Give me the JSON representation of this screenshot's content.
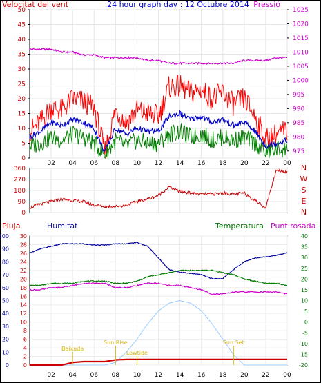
{
  "header": {
    "left_title": "Velocitat del vent",
    "center_title": "24 hour graph day : 12 Octubre 2014",
    "right_title": "Pressió"
  },
  "x_ticks": [
    "02",
    "04",
    "06",
    "08",
    "10",
    "12",
    "14",
    "16",
    "18",
    "20",
    "22",
    "00"
  ],
  "colors": {
    "wind_gust": "#ff0000",
    "wind_avg": "#0000cc",
    "wind_low": "#008000",
    "pressure": "#cc00cc",
    "direction": "#cc0000",
    "rain": "#cc0000",
    "humidity": "#000099",
    "temperature": "#007700",
    "dew_point": "#cc00cc",
    "sun": "#99ccff",
    "annotation": "#d4b800",
    "frame": "#000000"
  },
  "chart_data": [
    {
      "type": "line",
      "panel": "wind_pressure",
      "left_axis": {
        "label": "Velocitat del vent",
        "ticks": [
          0,
          5,
          10,
          15,
          20,
          25,
          30,
          35,
          40,
          45,
          50
        ],
        "range": [
          0,
          50
        ]
      },
      "right_axis": {
        "label": "Pressió",
        "ticks": [
          975,
          980,
          985,
          990,
          995,
          1000,
          1005,
          1010,
          1015,
          1020,
          1025
        ],
        "range": [
          972.5,
          1025
        ]
      },
      "x_hours": [
        0,
        1,
        2,
        3,
        4,
        5,
        6,
        7,
        8,
        9,
        10,
        11,
        12,
        13,
        14,
        15,
        16,
        17,
        18,
        19,
        20,
        21,
        22,
        23,
        24
      ],
      "series": [
        {
          "name": "Pressió",
          "axis": "right",
          "values": [
            1011,
            1011,
            1011,
            1010,
            1010,
            1009,
            1009,
            1008,
            1008,
            1008,
            1008,
            1007,
            1007,
            1006,
            1006,
            1006,
            1006,
            1006,
            1006,
            1006,
            1007,
            1007,
            1007,
            1008,
            1008
          ]
        },
        {
          "name": "gust",
          "axis": "left",
          "values": [
            9,
            12,
            17,
            16,
            20,
            19,
            17,
            2,
            16,
            12,
            16,
            15,
            14,
            24,
            24,
            22,
            23,
            20,
            22,
            18,
            20,
            14,
            6,
            8,
            9
          ]
        },
        {
          "name": "average",
          "axis": "left",
          "values": [
            7,
            9,
            12,
            11,
            13,
            12,
            10,
            2,
            10,
            8,
            10,
            9,
            9,
            14,
            15,
            13,
            14,
            12,
            13,
            11,
            12,
            9,
            4,
            5,
            6
          ]
        },
        {
          "name": "low",
          "axis": "left",
          "values": [
            4,
            5,
            7,
            6,
            8,
            7,
            5,
            1,
            6,
            4,
            6,
            5,
            5,
            8,
            9,
            7,
            8,
            6,
            7,
            6,
            7,
            5,
            2,
            3,
            3
          ]
        }
      ]
    },
    {
      "type": "line",
      "panel": "wind_direction",
      "left_axis": {
        "ticks": [
          0,
          90,
          180,
          270,
          360
        ],
        "range": [
          0,
          360
        ]
      },
      "right_axis": {
        "labels": [
          "N",
          "W",
          "S",
          "E",
          "N"
        ]
      },
      "x_hours": [
        0,
        1,
        2,
        3,
        4,
        5,
        6,
        7,
        8,
        9,
        10,
        11,
        12,
        13,
        14,
        15,
        16,
        17,
        18,
        19,
        20,
        21,
        22,
        23,
        24
      ],
      "series": [
        {
          "name": "direction",
          "values": [
            40,
            70,
            90,
            110,
            100,
            90,
            60,
            50,
            50,
            60,
            90,
            110,
            140,
            210,
            170,
            160,
            150,
            150,
            160,
            150,
            160,
            100,
            40,
            350,
            330
          ]
        }
      ]
    },
    {
      "type": "line",
      "panel": "rain_humidity_temperature",
      "labels": {
        "rain": "Pluja",
        "humidity": "Humitat",
        "temperature": "Temperatura",
        "dew_point": "Punt rosada"
      },
      "axes": {
        "humidity": {
          "ticks": [
            0,
            10,
            20,
            30,
            40,
            50,
            60,
            70,
            80,
            90,
            100
          ],
          "range": [
            0,
            100
          ]
        },
        "rain": {
          "ticks": [
            0,
            2,
            4,
            6,
            8,
            10,
            12,
            14,
            16,
            18,
            20,
            22,
            24,
            26,
            28,
            30
          ],
          "range": [
            0,
            30
          ]
        },
        "temperature": {
          "ticks": [
            -20,
            -15,
            -10,
            -5,
            0,
            5,
            10,
            15,
            20,
            25,
            30,
            35,
            40
          ],
          "range": [
            -20,
            40
          ]
        }
      },
      "x_hours": [
        0,
        1,
        2,
        3,
        4,
        5,
        6,
        7,
        8,
        9,
        10,
        11,
        12,
        13,
        14,
        15,
        16,
        17,
        18,
        19,
        20,
        21,
        22,
        23,
        24
      ],
      "series": [
        {
          "name": "Humitat",
          "axis": "humidity",
          "values": [
            87,
            90,
            92,
            94,
            94,
            94,
            93,
            93,
            94,
            94,
            95,
            92,
            83,
            74,
            72,
            71,
            70,
            67,
            67,
            74,
            80,
            83,
            84,
            85,
            87
          ]
        },
        {
          "name": "Temperatura",
          "axis": "temperature",
          "values": [
            17,
            17,
            18,
            18,
            18,
            19,
            19,
            19,
            18,
            18,
            19,
            21,
            22,
            23,
            24,
            24,
            24,
            24,
            23,
            22,
            20,
            19,
            18,
            18,
            17
          ]
        },
        {
          "name": "Punt rosada",
          "axis": "temperature",
          "values": [
            15,
            15,
            16,
            16,
            17,
            18,
            18,
            18,
            16,
            16,
            17,
            18,
            18,
            17,
            17,
            16,
            15,
            13,
            13,
            14,
            14,
            14,
            14,
            14,
            13
          ]
        },
        {
          "name": "Pluja",
          "axis": "rain",
          "values": [
            0,
            0,
            0,
            0,
            0.6,
            0.8,
            0.8,
            0.8,
            1.2,
            1.3,
            1.3,
            1.3,
            1.3,
            1.3,
            1.3,
            1.3,
            1.3,
            1.3,
            1.3,
            1.3,
            1.3,
            1.3,
            1.3,
            1.3,
            1.3
          ]
        },
        {
          "name": "sun",
          "axis": "humidity",
          "values": [
            0,
            0,
            0,
            0,
            0,
            0,
            0,
            0,
            2,
            10,
            20,
            32,
            42,
            48,
            50,
            48,
            42,
            32,
            20,
            8,
            0,
            0,
            0,
            0,
            0
          ]
        }
      ],
      "annotations": [
        {
          "text": "Baixada",
          "x_hour": 4.0
        },
        {
          "text": "Sun Rise",
          "x_hour": 8.0
        },
        {
          "text": "Lowtide",
          "x_hour": 10.0
        },
        {
          "text": "Sun Set",
          "x_hour": 19.0
        }
      ]
    }
  ]
}
